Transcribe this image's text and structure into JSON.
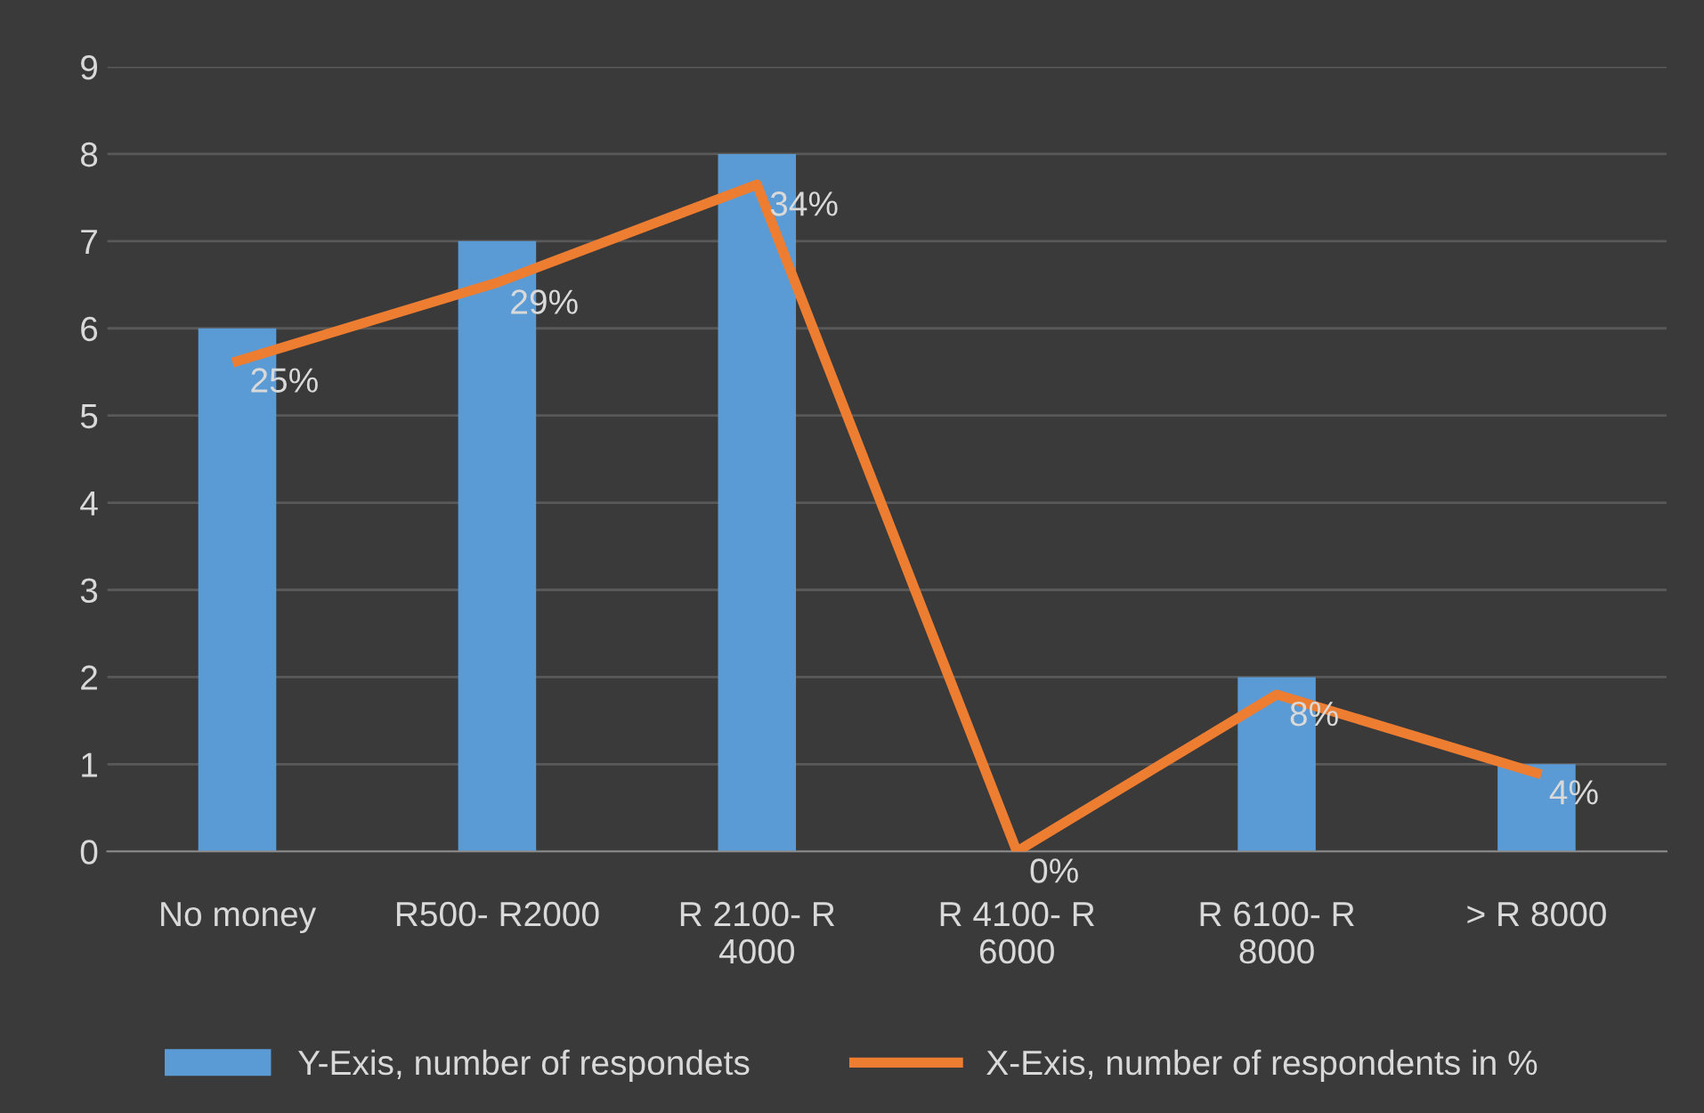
{
  "chart_data": {
    "type": "bar",
    "categories": [
      "No money",
      "R500- R2000",
      "R 2100- R\n4000",
      "R 4100- R\n6000",
      "R 6100- R\n8000",
      "> R 8000"
    ],
    "series": [
      {
        "name": "Y-Exis, number of respondets",
        "color": "#5b9bd5",
        "values": [
          6,
          7,
          8,
          0,
          2,
          1
        ]
      },
      {
        "name": "X-Exis, number of respondents in %",
        "type": "line",
        "axis": "y2",
        "color": "#ed7d31",
        "values": [
          25,
          29,
          34,
          0,
          8,
          4
        ],
        "value_labels": [
          "25%",
          "29%",
          "34%",
          "0%",
          "8%",
          "4%"
        ]
      }
    ],
    "ylim": [
      0,
      9
    ],
    "yticks": [
      0,
      1,
      2,
      3,
      4,
      5,
      6,
      7,
      8,
      9
    ],
    "y2lim": [
      0,
      40
    ],
    "grid": "y",
    "legend": "bottom",
    "marker": "none",
    "line_style": "solid"
  }
}
